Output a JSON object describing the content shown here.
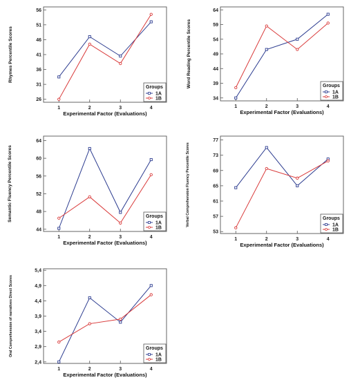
{
  "chart_data": [
    {
      "type": "line",
      "xlabel": "Experimental Factor (Evaluations)",
      "ylabel": "Rhymes Percentile Scores",
      "x": [
        1,
        2,
        3,
        4
      ],
      "yticks": [
        26,
        31,
        36,
        41,
        46,
        51,
        56
      ],
      "ylim": [
        25,
        57
      ],
      "legend_title": "Groups",
      "series": [
        {
          "name": "1A",
          "color": "#2b3b8f",
          "values": [
            33.5,
            47,
            40.5,
            52
          ]
        },
        {
          "name": "1B",
          "color": "#d93a3a",
          "values": [
            26,
            44.5,
            38,
            54.5
          ]
        }
      ]
    },
    {
      "type": "line",
      "xlabel": "Experimental Factor (Evaluations)",
      "ylabel": "Word Reading Percentile Scores",
      "x": [
        1,
        2,
        3,
        4
      ],
      "yticks": [
        34,
        39,
        44,
        49,
        54,
        59,
        64
      ],
      "ylim": [
        33,
        65
      ],
      "legend_title": "Groups",
      "series": [
        {
          "name": "1A",
          "color": "#2b3b8f",
          "values": [
            34,
            50.5,
            54,
            62.5
          ]
        },
        {
          "name": "1B",
          "color": "#d93a3a",
          "values": [
            37.5,
            58.5,
            50.5,
            59.5
          ]
        }
      ]
    },
    {
      "type": "line",
      "xlabel": "Experimental Factor (Evaluations)",
      "ylabel": "Semantic Fluency Percentile Scores",
      "x": [
        1,
        2,
        3,
        4
      ],
      "yticks": [
        44,
        48,
        52,
        56,
        60,
        64
      ],
      "ylim": [
        43.5,
        65
      ],
      "legend_title": "Groups",
      "series": [
        {
          "name": "1A",
          "color": "#2b3b8f",
          "values": [
            44.2,
            62.2,
            47.8,
            59.7
          ]
        },
        {
          "name": "1B",
          "color": "#d93a3a",
          "values": [
            46.5,
            51.3,
            45.4,
            56.3
          ]
        }
      ]
    },
    {
      "type": "line",
      "xlabel": "Experimental Factor (Evaluations)",
      "ylabel": "Verbal Comprehension Fluency Percentile Scores",
      "x": [
        1,
        2,
        3,
        4
      ],
      "yticks": [
        53,
        57,
        61,
        65,
        69,
        73,
        77
      ],
      "ylim": [
        52.5,
        78
      ],
      "legend_title": "Groups",
      "series": [
        {
          "name": "1A",
          "color": "#2b3b8f",
          "values": [
            64.5,
            75,
            65,
            72
          ]
        },
        {
          "name": "1B",
          "color": "#d93a3a",
          "values": [
            54,
            69.5,
            67,
            71.5
          ]
        }
      ]
    },
    {
      "type": "line",
      "xlabel": "Experimental Factor (Evaluations)",
      "ylabel": "Oral Comprehension of narratives Direct Scores",
      "x": [
        1,
        2,
        3,
        4
      ],
      "yticks": [
        2.4,
        2.9,
        3.4,
        3.9,
        4.4,
        4.9,
        5.4
      ],
      "ylim": [
        2.35,
        5.45
      ],
      "legend_title": "Groups",
      "series": [
        {
          "name": "1A",
          "color": "#2b3b8f",
          "values": [
            2.4,
            4.5,
            3.7,
            4.9
          ]
        },
        {
          "name": "1B",
          "color": "#d93a3a",
          "values": [
            3.05,
            3.65,
            3.8,
            4.6
          ]
        }
      ]
    }
  ]
}
